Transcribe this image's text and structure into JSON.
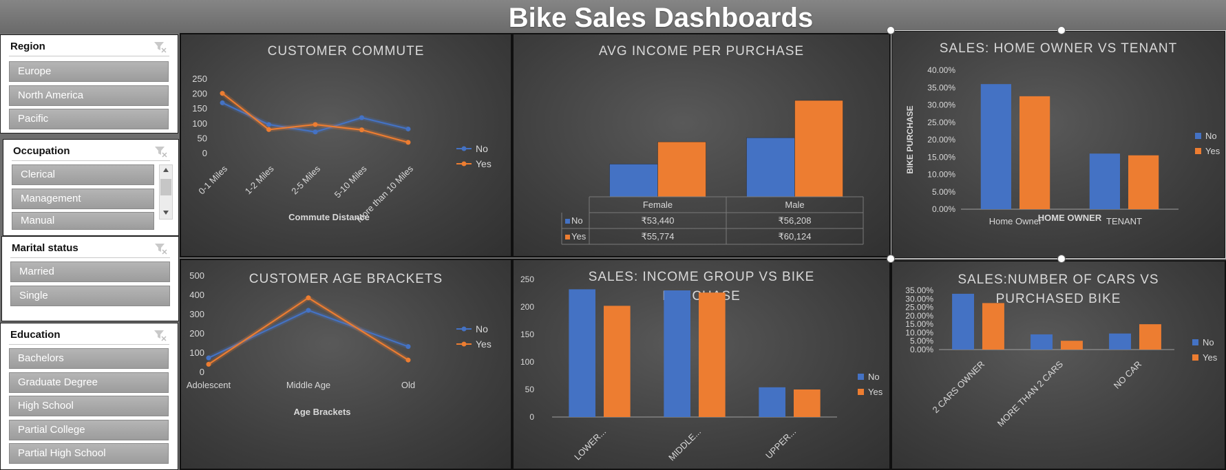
{
  "title": "Bike Sales Dashboards",
  "colors": {
    "no": "#4472c4",
    "yes": "#ed7d31",
    "text": "#d9d9d9"
  },
  "slicers": {
    "region": {
      "title": "Region",
      "items": [
        "Europe",
        "North America",
        "Pacific"
      ]
    },
    "occupation": {
      "title": "Occupation",
      "items": [
        "Clerical",
        "Management",
        "Manual"
      ]
    },
    "marital": {
      "title": "Marital status",
      "items": [
        "Married",
        "Single"
      ]
    },
    "education": {
      "title": "Education",
      "items": [
        "Bachelors",
        "Graduate Degree",
        "High School",
        "Partial College",
        "Partial High School"
      ]
    }
  },
  "chart_data": [
    {
      "id": "commute",
      "type": "line",
      "title": "CUSTOMER COMMUTE",
      "xlabel": "Commute Distance",
      "ylabel": "",
      "categories": [
        "0-1 Miles",
        "1-2 Miles",
        "2-5 Miles",
        "5-10 Miles",
        "More than 10 Miles"
      ],
      "series": [
        {
          "name": "No",
          "values": [
            168,
            95,
            70,
            118,
            80
          ]
        },
        {
          "name": "Yes",
          "values": [
            200,
            78,
            95,
            77,
            35
          ]
        }
      ],
      "ylim": [
        0,
        250
      ],
      "yticks": [
        "0",
        "50",
        "100",
        "150",
        "200",
        "250"
      ],
      "legend": "right"
    },
    {
      "id": "income",
      "type": "bar",
      "title": "AVG INCOME PER PURCHASE",
      "categories": [
        "Female",
        "Male"
      ],
      "series": [
        {
          "name": "No",
          "values": [
            53440,
            56208
          ]
        },
        {
          "name": "Yes",
          "values": [
            55774,
            60124
          ]
        }
      ],
      "value_labels": {
        "No": [
          "₹53,440",
          "₹56,208"
        ],
        "Yes": [
          "₹55,774",
          "₹60,124"
        ]
      },
      "ylim": [
        50000,
        62000
      ],
      "legend": "data-table"
    },
    {
      "id": "homeowner",
      "type": "bar",
      "title": "SALES: HOME OWNER VS TENANT",
      "xlabel": "HOME OWNER",
      "ylabel": "BIKE PURCHASE",
      "categories": [
        "Home Owner",
        "TENANT"
      ],
      "series": [
        {
          "name": "No",
          "values": [
            0.36,
            0.16
          ]
        },
        {
          "name": "Yes",
          "values": [
            0.325,
            0.155
          ]
        }
      ],
      "ylim": [
        0,
        0.4
      ],
      "yticks": [
        "0.00%",
        "5.00%",
        "10.00%",
        "15.00%",
        "20.00%",
        "25.00%",
        "30.00%",
        "35.00%",
        "40.00%"
      ],
      "legend": "right"
    },
    {
      "id": "age",
      "type": "line",
      "title": "CUSTOMER AGE BRACKETS",
      "xlabel": "Age Brackets",
      "ylabel": "",
      "categories": [
        "Adolescent",
        "Middle Age",
        "Old"
      ],
      "series": [
        {
          "name": "No",
          "values": [
            71,
            318,
            130
          ]
        },
        {
          "name": "Yes",
          "values": [
            38,
            383,
            60
          ]
        }
      ],
      "ylim": [
        0,
        500
      ],
      "yticks": [
        "0",
        "100",
        "200",
        "300",
        "400",
        "500"
      ],
      "legend": "right"
    },
    {
      "id": "incomegroup",
      "type": "bar",
      "title": "SALES: INCOME GROUP VS BIKE PURCHASE",
      "title_lines": [
        "SALES: INCOME GROUP VS BIKE",
        "PURCHASE"
      ],
      "xlabel": "",
      "ylabel": "",
      "categories": [
        "LOWER...",
        "MIDDLE...",
        "UPPER..."
      ],
      "series": [
        {
          "name": "No",
          "values": [
            232,
            230,
            54
          ]
        },
        {
          "name": "Yes",
          "values": [
            202,
            226,
            50
          ]
        }
      ],
      "ylim": [
        0,
        250
      ],
      "yticks": [
        "0",
        "50",
        "100",
        "150",
        "200",
        "250"
      ],
      "legend": "right"
    },
    {
      "id": "cars",
      "type": "bar",
      "title": "SALES:NUMBER OF CARS VS PURCHASED BIKE",
      "title_lines": [
        "SALES:NUMBER OF CARS VS",
        "PURCHASED BIKE"
      ],
      "xlabel": "",
      "ylabel": "",
      "categories": [
        "2 CARS OWNER",
        "MORE THAN 2 CARS",
        "NO CAR"
      ],
      "series": [
        {
          "name": "No",
          "values": [
            0.33,
            0.09,
            0.095
          ]
        },
        {
          "name": "Yes",
          "values": [
            0.275,
            0.052,
            0.15
          ]
        }
      ],
      "ylim": [
        0,
        0.35
      ],
      "yticks": [
        "0.00%",
        "5.00%",
        "10.00%",
        "15.00%",
        "20.00%",
        "25.00%",
        "30.00%",
        "35.00%"
      ],
      "legend": "right"
    }
  ]
}
